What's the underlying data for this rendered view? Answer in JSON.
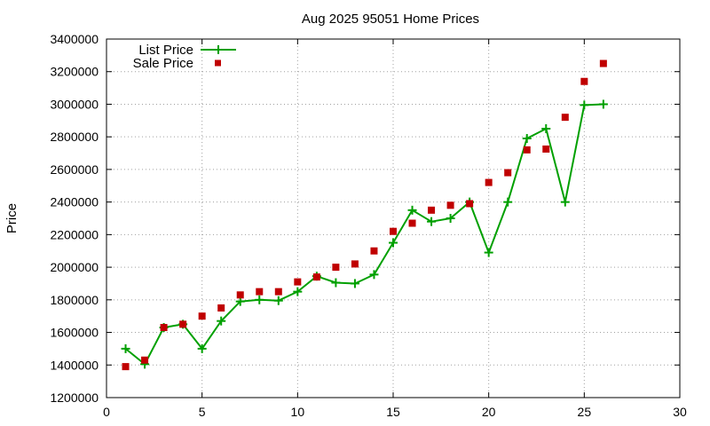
{
  "chart_data": {
    "type": "line",
    "title": "Aug 2025 95051 Home Prices",
    "xlabel": "",
    "ylabel": "Price",
    "xlim": [
      0,
      30
    ],
    "ylim": [
      1200000,
      3400000
    ],
    "xticks": [
      0,
      5,
      10,
      15,
      20,
      25,
      30
    ],
    "yticks": [
      1200000,
      1400000,
      1600000,
      1800000,
      2000000,
      2200000,
      2400000,
      2600000,
      2800000,
      3000000,
      3200000,
      3400000
    ],
    "grid": true,
    "legend_position": "top-left",
    "series": [
      {
        "name": "List Price",
        "style": "line-with-plus-markers",
        "color": "#00a000",
        "x": [
          1,
          2,
          3,
          4,
          5,
          6,
          7,
          8,
          9,
          10,
          11,
          12,
          13,
          14,
          15,
          16,
          17,
          18,
          19,
          20,
          21,
          22,
          23,
          24,
          25,
          26
        ],
        "values": [
          1500000,
          1405000,
          1630000,
          1650000,
          1500000,
          1670000,
          1790000,
          1800000,
          1795000,
          1850000,
          1945000,
          1905000,
          1900000,
          1955000,
          2150000,
          2350000,
          2280000,
          2300000,
          2400000,
          2090000,
          2400000,
          2790000,
          2850000,
          2400000,
          2995000,
          3000000
        ]
      },
      {
        "name": "Sale Price",
        "style": "square-markers",
        "color": "#c00000",
        "x": [
          1,
          2,
          3,
          4,
          5,
          6,
          7,
          8,
          9,
          10,
          11,
          12,
          13,
          14,
          15,
          16,
          17,
          18,
          19,
          20,
          21,
          22,
          23,
          24,
          25,
          26
        ],
        "values": [
          1390000,
          1430000,
          1630000,
          1650000,
          1700000,
          1750000,
          1830000,
          1850000,
          1850000,
          1910000,
          1940000,
          2000000,
          2020000,
          2100000,
          2220000,
          2270000,
          2350000,
          2380000,
          2390000,
          2520000,
          2580000,
          2720000,
          2725000,
          2920000,
          3140000,
          3250000
        ]
      }
    ]
  }
}
